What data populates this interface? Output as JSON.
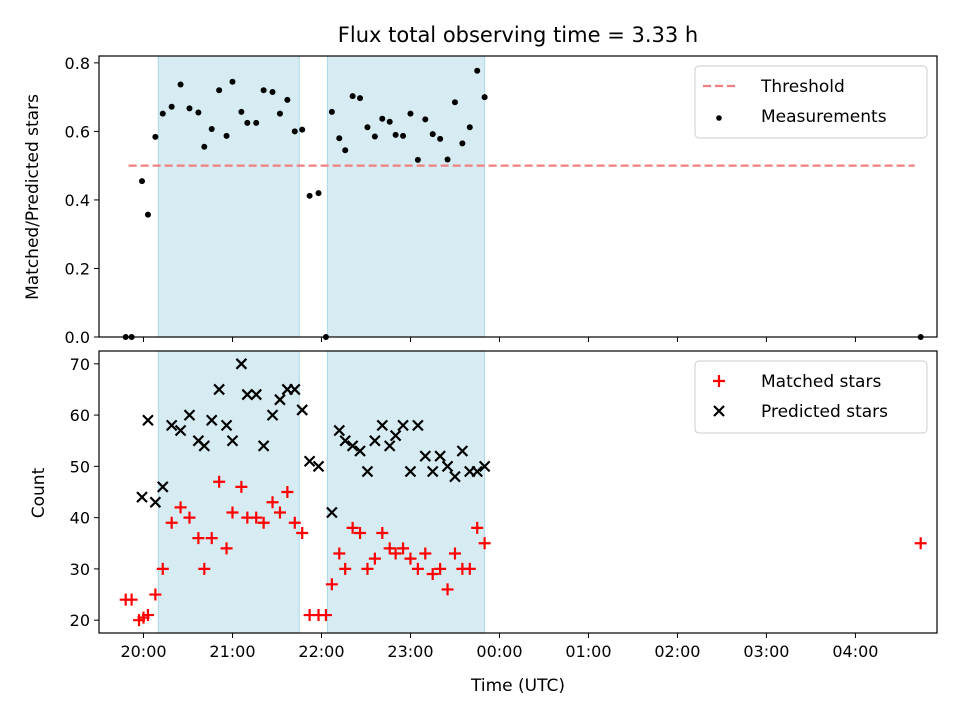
{
  "figure": {
    "title": "Flux total observing time = 3.33 h",
    "xlabel": "Time (UTC)"
  },
  "colors": {
    "threshold": "#f08080",
    "measurement": "#000000",
    "matched": "#ff0000",
    "predicted": "#000000",
    "span": "#add8e6"
  },
  "chart_data": [
    {
      "type": "scatter",
      "ylabel": "Matched/Predicted stars",
      "ylim": [
        0,
        0.82
      ],
      "yticks": [
        0.0,
        0.2,
        0.4,
        0.6,
        0.8
      ],
      "xlim": [
        "19:30",
        "04:55"
      ],
      "xticks": [
        "20:00",
        "21:00",
        "22:00",
        "23:00",
        "00:00",
        "01:00",
        "02:00",
        "03:00",
        "04:00"
      ],
      "legend": "top-right",
      "grid": false,
      "shaded_intervals": [
        [
          "20:10",
          "21:45"
        ],
        [
          "22:04",
          "23:50"
        ]
      ],
      "series": [
        {
          "name": "Threshold",
          "style": "dashed-line",
          "x": [
            "19:50",
            "04:40"
          ],
          "y": [
            0.5,
            0.5
          ]
        },
        {
          "name": "Measurements",
          "style": "dot",
          "points": [
            [
              "19:48",
              0.0
            ],
            [
              "19:52",
              0.0
            ],
            [
              "19:59",
              0.455
            ],
            [
              "20:03",
              0.357
            ],
            [
              "20:08",
              0.584
            ],
            [
              "20:13",
              0.652
            ],
            [
              "20:19",
              0.672
            ],
            [
              "20:25",
              0.737
            ],
            [
              "20:31",
              0.667
            ],
            [
              "20:37",
              0.655
            ],
            [
              "20:41",
              0.555
            ],
            [
              "20:46",
              0.607
            ],
            [
              "20:51",
              0.72
            ],
            [
              "20:56",
              0.587
            ],
            [
              "21:00",
              0.745
            ],
            [
              "21:06",
              0.657
            ],
            [
              "21:10",
              0.625
            ],
            [
              "21:16",
              0.625
            ],
            [
              "21:21",
              0.72
            ],
            [
              "21:27",
              0.715
            ],
            [
              "21:32",
              0.652
            ],
            [
              "21:37",
              0.692
            ],
            [
              "21:42",
              0.6
            ],
            [
              "21:47",
              0.605
            ],
            [
              "21:52",
              0.412
            ],
            [
              "21:58",
              0.42
            ],
            [
              "22:03",
              0.0
            ],
            [
              "22:07",
              0.657
            ],
            [
              "22:12",
              0.58
            ],
            [
              "22:16",
              0.545
            ],
            [
              "22:21",
              0.703
            ],
            [
              "22:26",
              0.697
            ],
            [
              "22:31",
              0.612
            ],
            [
              "22:36",
              0.585
            ],
            [
              "22:41",
              0.637
            ],
            [
              "22:46",
              0.628
            ],
            [
              "22:50",
              0.59
            ],
            [
              "22:55",
              0.587
            ],
            [
              "23:00",
              0.652
            ],
            [
              "23:05",
              0.517
            ],
            [
              "23:10",
              0.635
            ],
            [
              "23:15",
              0.592
            ],
            [
              "23:20",
              0.578
            ],
            [
              "23:25",
              0.518
            ],
            [
              "23:30",
              0.685
            ],
            [
              "23:35",
              0.565
            ],
            [
              "23:40",
              0.612
            ],
            [
              "23:45",
              0.777
            ],
            [
              "23:50",
              0.7
            ],
            [
              "04:44",
              0.0
            ]
          ]
        }
      ]
    },
    {
      "type": "scatter",
      "ylabel": "Count",
      "ylim": [
        17.5,
        72.5
      ],
      "yticks": [
        20,
        30,
        40,
        50,
        60,
        70
      ],
      "xlim": [
        "19:30",
        "04:55"
      ],
      "xticks": [
        "20:00",
        "21:00",
        "22:00",
        "23:00",
        "00:00",
        "01:00",
        "02:00",
        "03:00",
        "04:00"
      ],
      "legend": "top-right",
      "grid": false,
      "shaded_intervals": [
        [
          "20:10",
          "21:45"
        ],
        [
          "22:04",
          "23:50"
        ]
      ],
      "series": [
        {
          "name": "Matched stars",
          "style": "plus",
          "points": [
            [
              "19:48",
              24
            ],
            [
              "19:52",
              24
            ],
            [
              "19:57",
              20
            ],
            [
              "20:00",
              20.5
            ],
            [
              "20:03",
              21
            ],
            [
              "20:08",
              25
            ],
            [
              "20:13",
              30
            ],
            [
              "20:19",
              39
            ],
            [
              "20:25",
              42
            ],
            [
              "20:31",
              40
            ],
            [
              "20:37",
              36
            ],
            [
              "20:41",
              30
            ],
            [
              "20:46",
              36
            ],
            [
              "20:51",
              47
            ],
            [
              "20:56",
              34
            ],
            [
              "21:00",
              41
            ],
            [
              "21:06",
              46
            ],
            [
              "21:10",
              40
            ],
            [
              "21:16",
              40
            ],
            [
              "21:21",
              39
            ],
            [
              "21:27",
              43
            ],
            [
              "21:32",
              41
            ],
            [
              "21:37",
              45
            ],
            [
              "21:42",
              39
            ],
            [
              "21:47",
              37
            ],
            [
              "21:52",
              21
            ],
            [
              "21:58",
              21
            ],
            [
              "22:03",
              21
            ],
            [
              "22:07",
              27
            ],
            [
              "22:12",
              33
            ],
            [
              "22:16",
              30
            ],
            [
              "22:21",
              38
            ],
            [
              "22:26",
              37
            ],
            [
              "22:31",
              30
            ],
            [
              "22:36",
              32
            ],
            [
              "22:41",
              37
            ],
            [
              "22:46",
              34
            ],
            [
              "22:50",
              33
            ],
            [
              "22:55",
              34
            ],
            [
              "23:00",
              32
            ],
            [
              "23:05",
              30
            ],
            [
              "23:10",
              33
            ],
            [
              "23:15",
              29
            ],
            [
              "23:20",
              30
            ],
            [
              "23:25",
              26
            ],
            [
              "23:30",
              33
            ],
            [
              "23:35",
              30
            ],
            [
              "23:40",
              30
            ],
            [
              "23:45",
              38
            ],
            [
              "23:50",
              35
            ],
            [
              "04:44",
              35
            ]
          ]
        },
        {
          "name": "Predicted stars",
          "style": "x",
          "points": [
            [
              "19:59",
              44
            ],
            [
              "20:03",
              59
            ],
            [
              "20:08",
              43
            ],
            [
              "20:13",
              46
            ],
            [
              "20:19",
              58
            ],
            [
              "20:25",
              57
            ],
            [
              "20:31",
              60
            ],
            [
              "20:37",
              55
            ],
            [
              "20:41",
              54
            ],
            [
              "20:46",
              59
            ],
            [
              "20:51",
              65
            ],
            [
              "20:56",
              58
            ],
            [
              "21:00",
              55
            ],
            [
              "21:06",
              70
            ],
            [
              "21:10",
              64
            ],
            [
              "21:16",
              64
            ],
            [
              "21:21",
              54
            ],
            [
              "21:27",
              60
            ],
            [
              "21:32",
              63
            ],
            [
              "21:37",
              65
            ],
            [
              "21:42",
              65
            ],
            [
              "21:47",
              61
            ],
            [
              "21:52",
              51
            ],
            [
              "21:58",
              50
            ],
            [
              "22:07",
              41
            ],
            [
              "22:12",
              57
            ],
            [
              "22:16",
              55
            ],
            [
              "22:21",
              54
            ],
            [
              "22:26",
              53
            ],
            [
              "22:31",
              49
            ],
            [
              "22:36",
              55
            ],
            [
              "22:41",
              58
            ],
            [
              "22:46",
              54
            ],
            [
              "22:50",
              56
            ],
            [
              "22:55",
              58
            ],
            [
              "23:00",
              49
            ],
            [
              "23:05",
              58
            ],
            [
              "23:10",
              52
            ],
            [
              "23:15",
              49
            ],
            [
              "23:20",
              52
            ],
            [
              "23:25",
              50
            ],
            [
              "23:30",
              48
            ],
            [
              "23:35",
              53
            ],
            [
              "23:40",
              49
            ],
            [
              "23:45",
              49
            ],
            [
              "23:50",
              50
            ]
          ]
        }
      ]
    }
  ]
}
